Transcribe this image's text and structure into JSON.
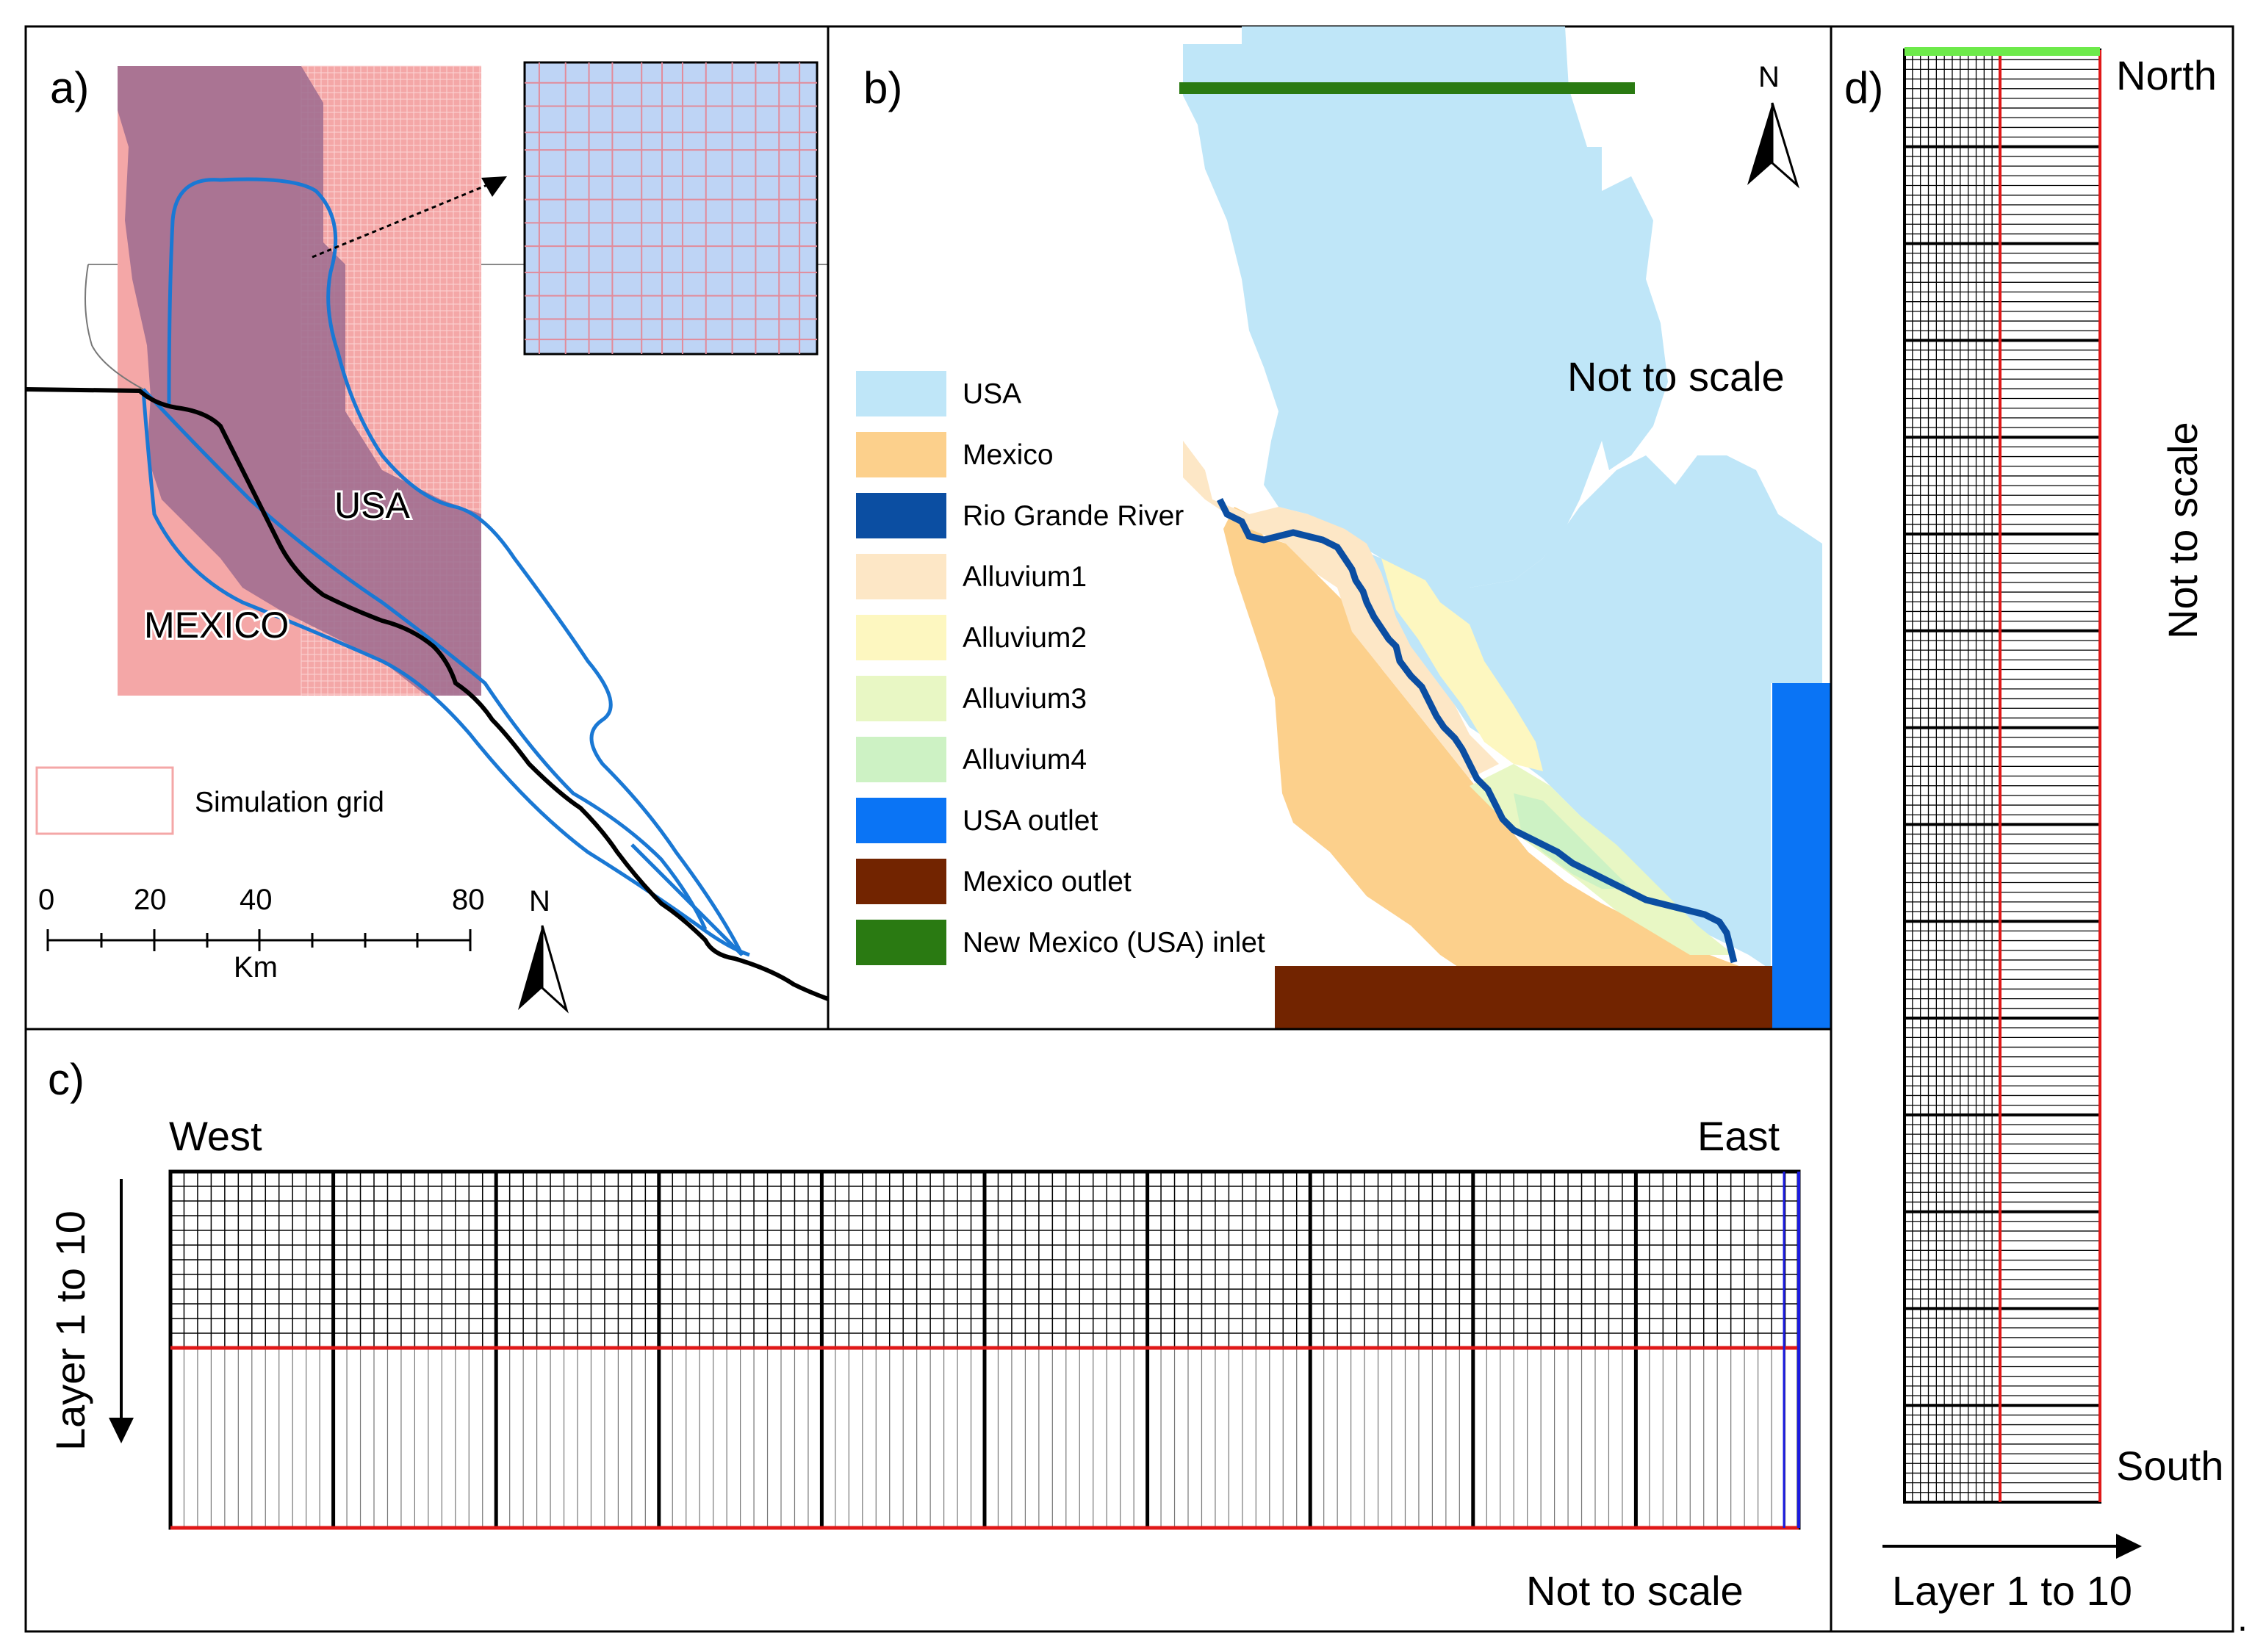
{
  "panel_a": {
    "label": "a)",
    "usa_label": "USA",
    "mexico_label": "MEXICO",
    "legend_label": "Simulation grid",
    "scale_ticks": [
      "0",
      "20",
      "40",
      "80"
    ],
    "scale_unit": "Km",
    "north_label": "N"
  },
  "panel_b": {
    "label": "b)",
    "north_label": "N",
    "not_to_scale": "Not to scale",
    "legend": [
      {
        "label": "USA",
        "color": "#bfe6f8"
      },
      {
        "label": "Mexico",
        "color": "#fcd08c"
      },
      {
        "label": "Rio Grande River",
        "color": "#0b4ea2"
      },
      {
        "label": "Alluvium1",
        "color": "#fde7c6"
      },
      {
        "label": "Alluvium2",
        "color": "#fdf7c0"
      },
      {
        "label": "Alluvium3",
        "color": "#e8f7c4"
      },
      {
        "label": "Alluvium4",
        "color": "#cdf2c4"
      },
      {
        "label": "USA outlet",
        "color": "#0a74f5"
      },
      {
        "label": "Mexico outlet",
        "color": "#722400"
      },
      {
        "label": "New Mexico (USA) inlet",
        "color": "#2a7a12"
      }
    ]
  },
  "panel_c": {
    "label": "c)",
    "west_label": "West",
    "east_label": "East",
    "layer_label": "Layer 1 to 10",
    "not_to_scale": "Not to scale"
  },
  "panel_d": {
    "label": "d)",
    "north_label": "North",
    "south_label": "South",
    "layer_label": "Layer 1 to 10",
    "not_to_scale": "Not to scale"
  },
  "colors": {
    "grid_pink": "#f4a7a7",
    "region_purple": "#9c6b8f",
    "boundary_blue": "#1a78d4",
    "red_line": "#e01818",
    "blue_line": "#1a1ae0",
    "green_inlet": "#6dea4a"
  }
}
